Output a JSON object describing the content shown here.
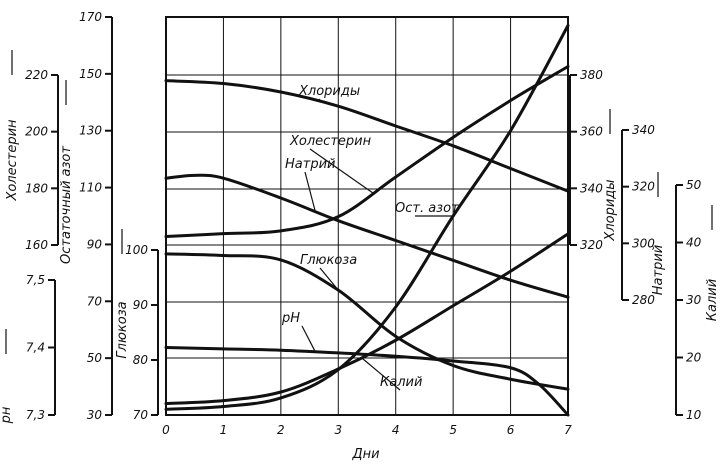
{
  "chart_data": {
    "type": "line",
    "xlabel": "Дни",
    "x_ticks": [
      "0",
      "1",
      "2",
      "3",
      "4",
      "5",
      "6",
      "7"
    ],
    "xlim": [
      0,
      7
    ],
    "grid": true,
    "axes": [
      {
        "id": "chol",
        "label": "Холестерин",
        "side": "left",
        "ticks": [
          "160",
          "180",
          "200",
          "220"
        ],
        "range": [
          160,
          220
        ]
      },
      {
        "id": "nres",
        "label": "Остаточный азот",
        "side": "left",
        "ticks": [
          "30",
          "50",
          "70",
          "90",
          "110",
          "130",
          "150",
          "170"
        ],
        "range": [
          30,
          170
        ]
      },
      {
        "id": "ph",
        "label": "pн",
        "side": "left",
        "ticks": [
          "7,3",
          "7,4",
          "7,5"
        ],
        "range": [
          7.3,
          7.5
        ]
      },
      {
        "id": "gluc",
        "label": "Глюкоза",
        "side": "left",
        "ticks": [
          "70",
          "80",
          "90",
          "100"
        ],
        "range": [
          70,
          100
        ]
      },
      {
        "id": "cl",
        "label": "Хлориды",
        "side": "right",
        "ticks": [
          "320",
          "340",
          "360",
          "380"
        ],
        "range": [
          320,
          380
        ]
      },
      {
        "id": "na",
        "label": "Натрий",
        "side": "right",
        "ticks": [
          "280",
          "300",
          "320",
          "340"
        ],
        "range": [
          280,
          340
        ]
      },
      {
        "id": "k",
        "label": "Калий",
        "side": "right",
        "ticks": [
          "10",
          "20",
          "30",
          "40",
          "50"
        ],
        "range": [
          10,
          50
        ]
      }
    ],
    "series": [
      {
        "name": "Хлориды",
        "axis": "cl",
        "x": [
          0,
          1,
          2,
          3,
          4,
          5,
          6,
          7
        ],
        "y": [
          378,
          377,
          374,
          369,
          362,
          355,
          347,
          339
        ]
      },
      {
        "name": "Холестерин",
        "axis": "chol",
        "x": [
          0,
          1,
          2,
          3,
          4,
          5,
          6,
          7
        ],
        "y": [
          163,
          164,
          165,
          170,
          184,
          198,
          211,
          223
        ]
      },
      {
        "name": "Натрий",
        "axis": "na",
        "x": [
          0,
          0.5,
          1,
          2,
          3,
          4,
          5,
          6,
          7
        ],
        "y": [
          323,
          324,
          323,
          316,
          308,
          301,
          294,
          287,
          281
        ]
      },
      {
        "name": "Ост. азот",
        "axis": "nres",
        "x": [
          0,
          1,
          2,
          3,
          4,
          5,
          6,
          7
        ],
        "y": [
          32,
          33,
          36,
          46,
          68,
          100,
          130,
          167
        ]
      },
      {
        "name": "Глюкоза",
        "axis": "gluc",
        "x": [
          0,
          1,
          2,
          3,
          4,
          5,
          6,
          7
        ],
        "y": [
          99.3,
          99,
          98.2,
          92.7,
          84.3,
          79,
          76.5,
          74.7
        ]
      },
      {
        "name": "pH",
        "axis": "ph",
        "x": [
          0,
          1,
          2,
          3,
          4,
          5,
          6,
          6.5,
          7
        ],
        "y": [
          7.4,
          7.398,
          7.396,
          7.392,
          7.387,
          7.38,
          7.37,
          7.345,
          7.3
        ]
      },
      {
        "name": "Калий",
        "axis": "k",
        "x": [
          0,
          1,
          2,
          3,
          4,
          5,
          6,
          7
        ],
        "y": [
          12,
          12.5,
          14,
          18,
          23,
          29,
          35,
          41.5
        ]
      }
    ]
  }
}
